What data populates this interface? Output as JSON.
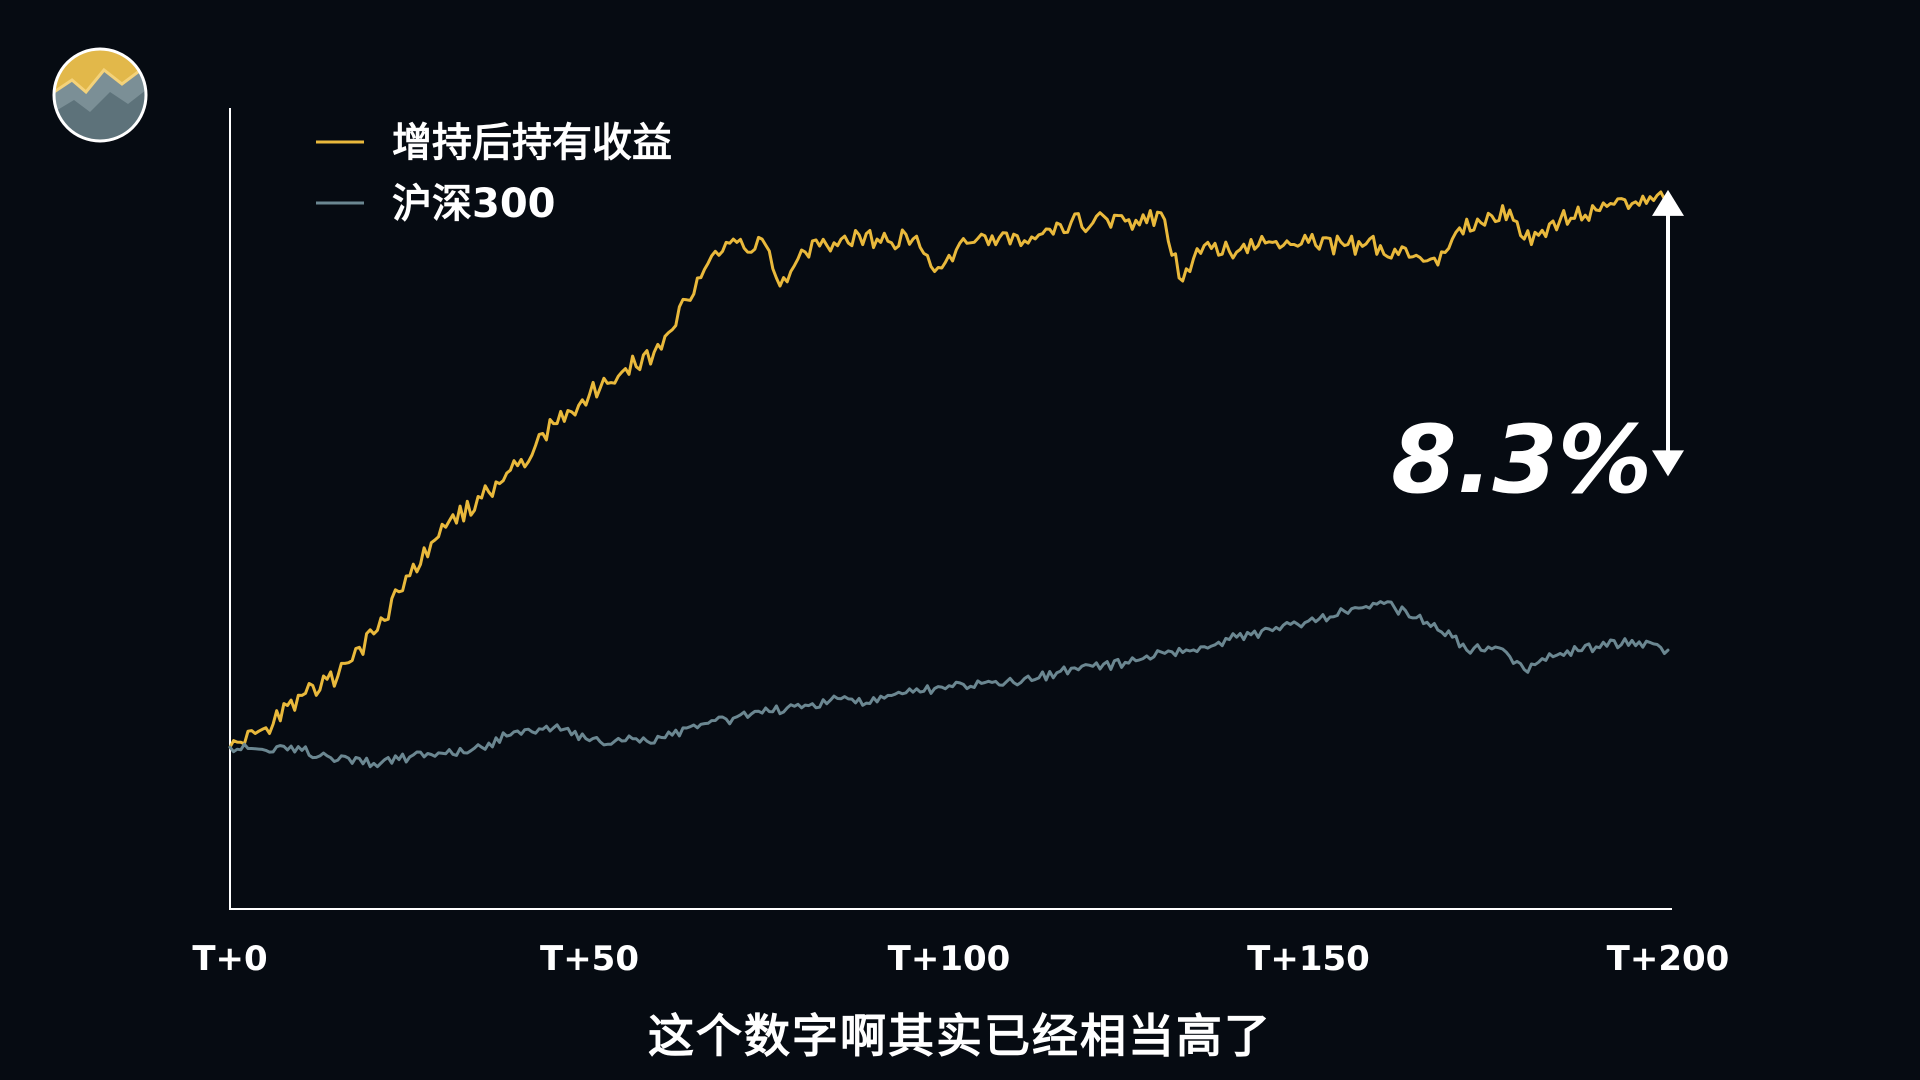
{
  "colors": {
    "background": "#060b12",
    "series_holding": "#e9b93c",
    "series_index": "#6b8791",
    "axis": "#ffffff",
    "text": "#ffffff"
  },
  "logo": {
    "icon": "channel-logo-icon"
  },
  "annotation": {
    "label": "8.3%"
  },
  "subtitle": "这个数字啊其实已经相当高了",
  "chart_data": {
    "type": "line",
    "title": "",
    "xlabel": "",
    "ylabel": "",
    "xlim": [
      0,
      200
    ],
    "ylim": [
      -0.05,
      0.2
    ],
    "x_ticks": [
      0,
      50,
      100,
      150,
      200
    ],
    "x_tick_labels": [
      "T+0",
      "T+50",
      "T+100",
      "T+150",
      "T+200"
    ],
    "legend": "top-left",
    "grid": false,
    "annotation": {
      "text": "8.3%",
      "x": 200,
      "y_from": 0.088,
      "y_to": 0.171
    },
    "series": [
      {
        "name": "增持后持有收益",
        "color": "#e9b93c",
        "x": [
          0,
          5,
          10,
          15,
          20,
          25,
          30,
          35,
          40,
          45,
          50,
          55,
          60,
          65,
          70,
          72,
          74,
          76,
          78,
          80,
          85,
          90,
          95,
          98,
          100,
          105,
          110,
          115,
          120,
          125,
          130,
          132,
          134,
          136,
          140,
          145,
          150,
          155,
          160,
          165,
          168,
          170,
          175,
          178,
          180,
          185,
          190,
          195,
          200
        ],
        "y": [
          0.0,
          0.006,
          0.016,
          0.022,
          0.035,
          0.053,
          0.068,
          0.077,
          0.087,
          0.1,
          0.109,
          0.117,
          0.123,
          0.145,
          0.157,
          0.153,
          0.157,
          0.145,
          0.147,
          0.153,
          0.157,
          0.157,
          0.157,
          0.147,
          0.152,
          0.158,
          0.155,
          0.162,
          0.162,
          0.163,
          0.163,
          0.145,
          0.151,
          0.156,
          0.153,
          0.156,
          0.156,
          0.155,
          0.155,
          0.152,
          0.149,
          0.157,
          0.165,
          0.166,
          0.157,
          0.163,
          0.166,
          0.168,
          0.171
        ]
      },
      {
        "name": "沪深300",
        "color": "#6b8791",
        "x": [
          0,
          5,
          10,
          15,
          20,
          25,
          30,
          35,
          40,
          45,
          50,
          55,
          60,
          65,
          70,
          75,
          80,
          85,
          90,
          95,
          100,
          105,
          110,
          115,
          120,
          125,
          130,
          135,
          140,
          145,
          150,
          155,
          160,
          162,
          165,
          170,
          172,
          175,
          178,
          180,
          185,
          190,
          195,
          200
        ],
        "y": [
          0.0,
          -0.001,
          -0.001,
          -0.004,
          -0.005,
          -0.003,
          -0.002,
          0.0,
          0.005,
          0.006,
          0.002,
          0.002,
          0.003,
          0.006,
          0.009,
          0.011,
          0.013,
          0.015,
          0.014,
          0.017,
          0.019,
          0.02,
          0.02,
          0.023,
          0.025,
          0.026,
          0.029,
          0.031,
          0.034,
          0.036,
          0.039,
          0.042,
          0.045,
          0.043,
          0.04,
          0.034,
          0.03,
          0.031,
          0.028,
          0.024,
          0.029,
          0.031,
          0.033,
          0.03
        ]
      }
    ]
  }
}
